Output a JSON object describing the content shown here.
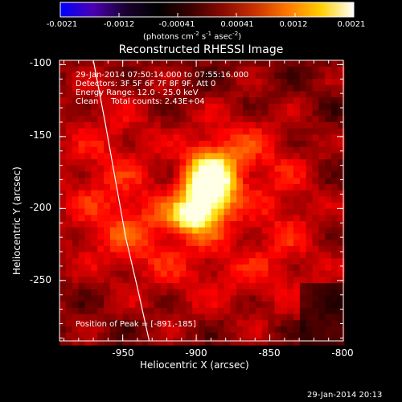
{
  "colorbar": {
    "ticks": [
      "-0.0021",
      "-0.0012",
      "-0.00041",
      "0.00041",
      "0.0012",
      "0.0021"
    ],
    "unit_prefix": "(photons cm",
    "unit_sup1": "-2",
    "unit_mid": " s",
    "unit_sup2": "-1",
    "unit_mid2": " asec",
    "unit_sup3": "-2",
    "unit_suffix": ")",
    "colors": [
      "#0000ff",
      "#4b00b4",
      "#1a0030",
      "#000000",
      "#3a0000",
      "#8a0a00",
      "#cc3300",
      "#ff7a00",
      "#ffd000",
      "#ffffff"
    ]
  },
  "plot": {
    "title": "Reconstructed RHESSI Image",
    "info_lines": [
      "29-Jan-2014 07:50:14.000 to 07:55:16.000",
      "Detectors: 3F 5F 6F 7F 8F 9F, Att 0",
      "Energy Range: 12.0 - 25.0 keV",
      "Clean     Total counts: 2.43E+04"
    ],
    "peak_label": "Position of Peak = [-891,-185]",
    "xlabel": "Heliocentric X (arcsec)",
    "ylabel": "Heliocentric Y (arcsec)",
    "x_ticks": [
      "-950",
      "-900",
      "-850",
      "-800"
    ],
    "y_ticks": [
      "-100",
      "-150",
      "-200",
      "-250"
    ]
  },
  "footer": {
    "timestamp": "29-Jan-2014 20:13"
  },
  "chart_data": {
    "type": "heatmap",
    "title": "Reconstructed RHESSI Image",
    "xlabel": "Heliocentric X (arcsec)",
    "ylabel": "Heliocentric Y (arcsec)",
    "xlim": [
      -993,
      -800
    ],
    "ylim": [
      -292,
      -97
    ],
    "x_ticks": [
      -950,
      -900,
      -850,
      -800
    ],
    "y_ticks": [
      -100,
      -150,
      -200,
      -250
    ],
    "colorbar_range": [
      -0.0021,
      0.0021
    ],
    "colorbar_unit": "photons cm^-2 s^-1 asec^-2",
    "peak": {
      "x": -891,
      "y": -185
    },
    "limb_curve": {
      "x": [
        -970,
        -962,
        -955,
        -948,
        -940,
        -932
      ],
      "y": [
        -97,
        -140,
        -180,
        -220,
        -255,
        -292
      ]
    },
    "sources": [
      {
        "x": -891,
        "y": -185,
        "sx": 12,
        "sy": 16,
        "amp": 1.0
      },
      {
        "x": -904,
        "y": -205,
        "sx": 10,
        "sy": 8,
        "amp": 0.55
      },
      {
        "x": -875,
        "y": -160,
        "sx": 22,
        "sy": 20,
        "amp": 0.25
      },
      {
        "x": -960,
        "y": -165,
        "sx": 28,
        "sy": 40,
        "amp": 0.22
      },
      {
        "x": -940,
        "y": -215,
        "sx": 30,
        "sy": 20,
        "amp": 0.22
      },
      {
        "x": -880,
        "y": -245,
        "sx": 50,
        "sy": 25,
        "amp": 0.18
      },
      {
        "x": -840,
        "y": -195,
        "sx": 20,
        "sy": 35,
        "amp": 0.18
      }
    ]
  }
}
